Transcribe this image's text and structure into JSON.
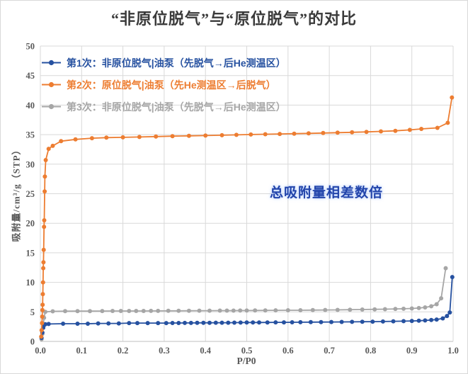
{
  "chart_data": {
    "type": "line",
    "title": "“非原位脱气”与“原位脱气”的对比",
    "xlabel": "P/P0",
    "ylabel": "吸附量/cm³/g（STP）",
    "xlim": [
      0,
      1.0
    ],
    "ylim": [
      0,
      50
    ],
    "xticks": [
      "0.0",
      "0.1",
      "0.2",
      "0.3",
      "0.4",
      "0.5",
      "0.6",
      "0.7",
      "0.8",
      "0.9",
      "1.0"
    ],
    "yticks": [
      0,
      5,
      10,
      15,
      20,
      25,
      30,
      35,
      40,
      45,
      50
    ],
    "grid": true,
    "legend_position": "top-left-inside",
    "colors": {
      "grid": "#d9d9d9",
      "axis": "#bfbfbf",
      "tick_text": "#595959",
      "title_text": "#3a3a3a"
    },
    "annotation": {
      "text": "总吸附量相差数倍",
      "color": "#2244aa"
    },
    "series": [
      {
        "name": "第1次：非原位脱气|油泵（先脱气→后He测温区）",
        "color": "#2651a0",
        "points": [
          [
            0.003,
            0.6
          ],
          [
            0.005,
            1.5
          ],
          [
            0.007,
            2.3
          ],
          [
            0.009,
            2.75
          ],
          [
            0.012,
            2.9
          ],
          [
            0.02,
            2.95
          ],
          [
            0.055,
            3.0
          ],
          [
            0.09,
            3.0
          ],
          [
            0.115,
            3.0
          ],
          [
            0.14,
            3.05
          ],
          [
            0.165,
            3.05
          ],
          [
            0.19,
            3.05
          ],
          [
            0.215,
            3.1
          ],
          [
            0.235,
            3.1
          ],
          [
            0.26,
            3.1
          ],
          [
            0.285,
            3.1
          ],
          [
            0.305,
            3.1
          ],
          [
            0.32,
            3.12
          ],
          [
            0.335,
            3.12
          ],
          [
            0.35,
            3.13
          ],
          [
            0.365,
            3.13
          ],
          [
            0.38,
            3.14
          ],
          [
            0.395,
            3.15
          ],
          [
            0.41,
            3.15
          ],
          [
            0.425,
            3.16
          ],
          [
            0.44,
            3.17
          ],
          [
            0.455,
            3.17
          ],
          [
            0.47,
            3.18
          ],
          [
            0.485,
            3.19
          ],
          [
            0.5,
            3.2
          ],
          [
            0.515,
            3.2
          ],
          [
            0.53,
            3.2
          ],
          [
            0.55,
            3.21
          ],
          [
            0.57,
            3.22
          ],
          [
            0.59,
            3.23
          ],
          [
            0.61,
            3.24
          ],
          [
            0.63,
            3.25
          ],
          [
            0.655,
            3.26
          ],
          [
            0.68,
            3.27
          ],
          [
            0.705,
            3.28
          ],
          [
            0.73,
            3.3
          ],
          [
            0.755,
            3.31
          ],
          [
            0.78,
            3.33
          ],
          [
            0.805,
            3.35
          ],
          [
            0.83,
            3.37
          ],
          [
            0.855,
            3.4
          ],
          [
            0.88,
            3.43
          ],
          [
            0.9,
            3.47
          ],
          [
            0.917,
            3.5
          ],
          [
            0.932,
            3.55
          ],
          [
            0.947,
            3.62
          ],
          [
            0.96,
            3.7
          ],
          [
            0.975,
            3.9
          ],
          [
            0.985,
            4.3
          ],
          [
            0.992,
            4.9
          ],
          [
            0.998,
            10.9
          ]
        ]
      },
      {
        "name": "第2次：原位脱气|油泵（先He测温区→后脱气）",
        "color": "#ed7d31",
        "points": [
          [
            0.002,
            0.8
          ],
          [
            0.003,
            1.9
          ],
          [
            0.004,
            3.1
          ],
          [
            0.0045,
            4.2
          ],
          [
            0.005,
            5.3
          ],
          [
            0.0055,
            6.2
          ],
          [
            0.006,
            8.0
          ],
          [
            0.0065,
            10.0
          ],
          [
            0.007,
            12.4
          ],
          [
            0.0075,
            13.4
          ],
          [
            0.008,
            15.5
          ],
          [
            0.009,
            19.4
          ],
          [
            0.0095,
            20.5
          ],
          [
            0.0105,
            25.4
          ],
          [
            0.011,
            27.9
          ],
          [
            0.013,
            30.7
          ],
          [
            0.02,
            32.6
          ],
          [
            0.03,
            33.1
          ],
          [
            0.05,
            33.9
          ],
          [
            0.085,
            34.2
          ],
          [
            0.125,
            34.4
          ],
          [
            0.16,
            34.5
          ],
          [
            0.2,
            34.55
          ],
          [
            0.24,
            34.6
          ],
          [
            0.28,
            34.68
          ],
          [
            0.32,
            34.75
          ],
          [
            0.36,
            34.8
          ],
          [
            0.4,
            34.85
          ],
          [
            0.44,
            34.9
          ],
          [
            0.475,
            34.97
          ],
          [
            0.51,
            35.02
          ],
          [
            0.545,
            35.07
          ],
          [
            0.58,
            35.12
          ],
          [
            0.615,
            35.17
          ],
          [
            0.65,
            35.22
          ],
          [
            0.685,
            35.27
          ],
          [
            0.72,
            35.33
          ],
          [
            0.755,
            35.4
          ],
          [
            0.79,
            35.47
          ],
          [
            0.825,
            35.55
          ],
          [
            0.86,
            35.65
          ],
          [
            0.895,
            35.8
          ],
          [
            0.923,
            35.97
          ],
          [
            0.962,
            36.15
          ],
          [
            0.987,
            37.0
          ],
          [
            0.997,
            41.3
          ]
        ]
      },
      {
        "name": "第3次：非原位脱气|油泵（先脱气→后He测温区）",
        "color": "#a6a6a6",
        "points": [
          [
            0.003,
            0.4
          ],
          [
            0.005,
            1.3
          ],
          [
            0.007,
            2.6
          ],
          [
            0.009,
            4.0
          ],
          [
            0.012,
            5.0
          ],
          [
            0.03,
            5.1
          ],
          [
            0.06,
            5.12
          ],
          [
            0.09,
            5.13
          ],
          [
            0.12,
            5.13
          ],
          [
            0.15,
            5.14
          ],
          [
            0.175,
            5.15
          ],
          [
            0.195,
            5.15
          ],
          [
            0.215,
            5.15
          ],
          [
            0.232,
            5.16
          ],
          [
            0.25,
            5.16
          ],
          [
            0.268,
            5.17
          ],
          [
            0.285,
            5.17
          ],
          [
            0.31,
            5.18
          ],
          [
            0.335,
            5.18
          ],
          [
            0.36,
            5.19
          ],
          [
            0.385,
            5.2
          ],
          [
            0.41,
            5.2
          ],
          [
            0.435,
            5.21
          ],
          [
            0.452,
            5.22
          ],
          [
            0.468,
            5.22
          ],
          [
            0.484,
            5.23
          ],
          [
            0.5,
            5.23
          ],
          [
            0.52,
            5.24
          ],
          [
            0.545,
            5.25
          ],
          [
            0.57,
            5.26
          ],
          [
            0.6,
            5.27
          ],
          [
            0.63,
            5.28
          ],
          [
            0.66,
            5.3
          ],
          [
            0.69,
            5.32
          ],
          [
            0.72,
            5.34
          ],
          [
            0.75,
            5.37
          ],
          [
            0.78,
            5.4
          ],
          [
            0.81,
            5.43
          ],
          [
            0.835,
            5.46
          ],
          [
            0.86,
            5.5
          ],
          [
            0.88,
            5.53
          ],
          [
            0.9,
            5.58
          ],
          [
            0.917,
            5.65
          ],
          [
            0.932,
            5.75
          ],
          [
            0.947,
            5.95
          ],
          [
            0.96,
            6.3
          ],
          [
            0.971,
            7.3
          ],
          [
            0.982,
            12.4
          ]
        ]
      }
    ]
  }
}
